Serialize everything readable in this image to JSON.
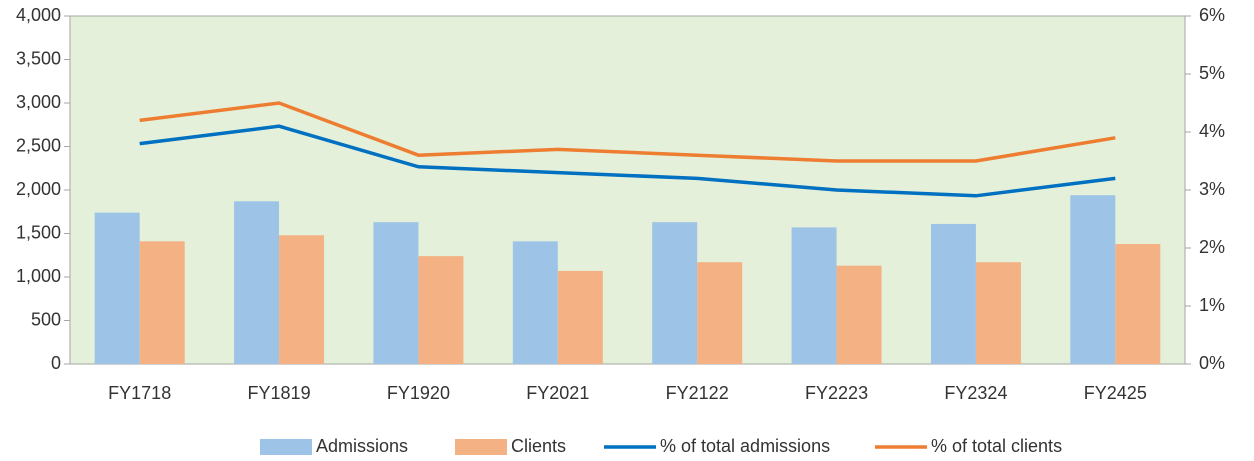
{
  "chart_data": {
    "type": "bar",
    "categories": [
      "FY1718",
      "FY1819",
      "FY1920",
      "FY2021",
      "FY2122",
      "FY2223",
      "FY2324",
      "FY2425"
    ],
    "series": [
      {
        "name": "Admissions",
        "type": "bar",
        "color": "#9dc3e6",
        "values": [
          1740,
          1870,
          1630,
          1410,
          1630,
          1570,
          1610,
          1940
        ]
      },
      {
        "name": "Clients",
        "type": "bar",
        "color": "#f4b183",
        "values": [
          1410,
          1480,
          1240,
          1070,
          1170,
          1130,
          1170,
          1380
        ]
      },
      {
        "name": "% of total admissions",
        "type": "line",
        "axis": "y2",
        "color": "#0070c0",
        "values": [
          3.8,
          4.1,
          3.4,
          3.3,
          3.2,
          3.0,
          2.9,
          3.2
        ]
      },
      {
        "name": "% of total clients",
        "type": "line",
        "axis": "y2",
        "color": "#ed7d31",
        "values": [
          4.2,
          4.5,
          3.6,
          3.7,
          3.6,
          3.5,
          3.5,
          3.9
        ]
      }
    ],
    "ylim": [
      0,
      4000
    ],
    "yticks": [
      0,
      500,
      {
        "value": 1000,
        "label": "1,000"
      },
      {
        "value": 1500,
        "label": "1,500"
      },
      {
        "value": 2000,
        "label": "2,000"
      },
      {
        "value": 2500,
        "label": "2,500"
      },
      {
        "value": 3000,
        "label": "3,000"
      },
      {
        "value": 3500,
        "label": "3,500"
      },
      {
        "value": 4000,
        "label": "4,000"
      }
    ],
    "y2lim": [
      0,
      6
    ],
    "y2ticks": [
      {
        "value": 0,
        "label": "0%"
      },
      {
        "value": 1,
        "label": "1%"
      },
      {
        "value": 2,
        "label": "2%"
      },
      {
        "value": 3,
        "label": "3%"
      },
      {
        "value": 4,
        "label": "4%"
      },
      {
        "value": 5,
        "label": "5%"
      },
      {
        "value": 6,
        "label": "6%"
      }
    ],
    "plot_background": "#e5f0db",
    "legend": "bottom"
  }
}
